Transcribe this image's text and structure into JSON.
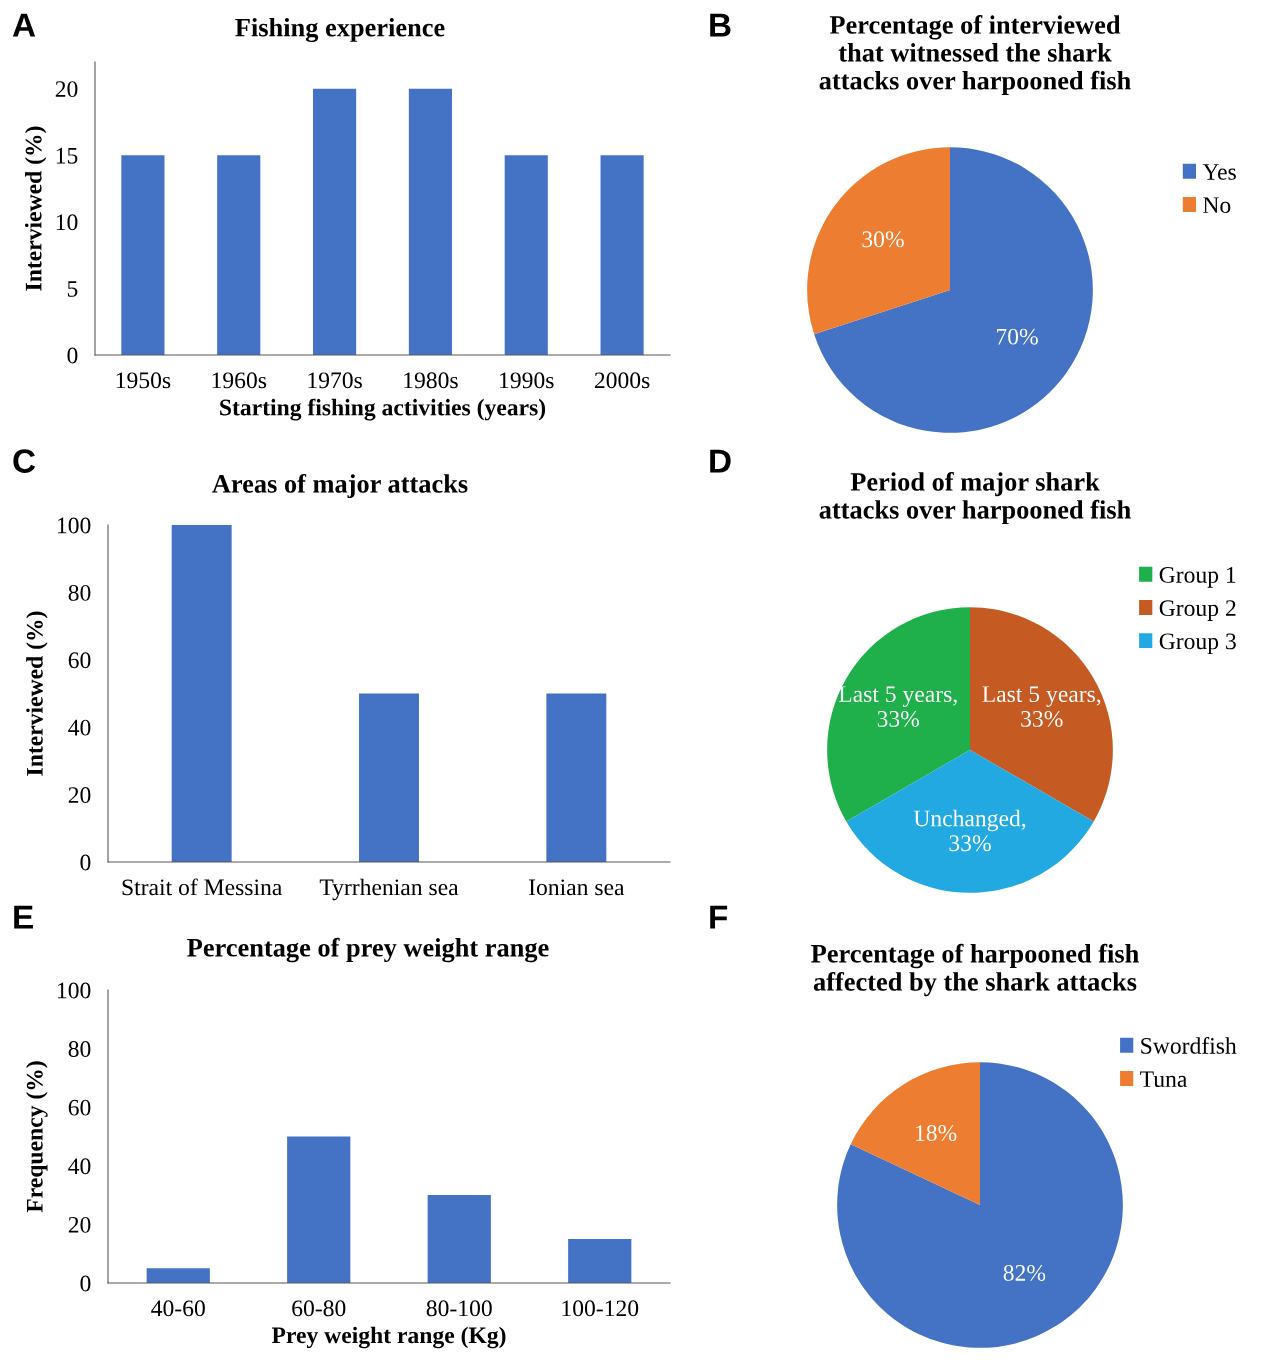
{
  "chart_data": [
    {
      "type": "bar",
      "title": "Fishing experience",
      "xlabel": "Starting fishing activities (years)",
      "ylabel": "Interviewed (%)",
      "annotations": [
        "A"
      ],
      "categories": [
        "1950s",
        "1960s",
        "1970s",
        "1980s",
        "1990s",
        "2000s"
      ],
      "values": [
        15,
        15,
        20,
        20,
        15,
        15
      ],
      "color": "#4472c4",
      "ylim": [
        0,
        22
      ],
      "yticks": [
        0,
        5,
        10,
        15,
        20
      ]
    },
    {
      "type": "pie",
      "title": "Percentage of interviewed\nthat witnessed the shark\nattacks over harpooned fish",
      "annotations": [
        "B"
      ],
      "categories": [
        "Yes",
        "No"
      ],
      "values": [
        70,
        30
      ],
      "colors": [
        "#4472c4",
        "#ed7d31"
      ],
      "value_labels": [
        "70%",
        "30%"
      ],
      "legend": "top right"
    },
    {
      "type": "bar",
      "title": "Areas of major attacks",
      "ylabel": "Interviewed (%)",
      "annotations": [
        "C"
      ],
      "categories": [
        "Strait of Messina",
        "Tyrrhenian sea",
        "Ionian sea"
      ],
      "values": [
        100,
        50,
        50
      ],
      "color": "#4472c4",
      "ylim": [
        0,
        100
      ],
      "yticks": [
        0,
        20,
        40,
        60,
        80,
        100
      ]
    },
    {
      "type": "pie",
      "title": "Period of major shark\nattacks over harpooned fish",
      "annotations": [
        "D"
      ],
      "categories": [
        "Group 1",
        "Group 2",
        "Group 3"
      ],
      "values": [
        33,
        33,
        33
      ],
      "colors": [
        "#1fb04b",
        "#c55a22",
        "#23a9e1"
      ],
      "value_labels": [
        "Last 5 years,\n33%",
        "Last 5 years,\n33%",
        "Unchanged,\n33%"
      ],
      "legend": "top right"
    },
    {
      "type": "bar",
      "title": "Percentage of prey weight range",
      "xlabel": "Prey weight range (Kg)",
      "ylabel": "Frequency (%)",
      "annotations": [
        "E"
      ],
      "categories": [
        "40-60",
        "60-80",
        "80-100",
        "100-120"
      ],
      "values": [
        5,
        50,
        30,
        15
      ],
      "color": "#4472c4",
      "ylim": [
        0,
        100
      ],
      "yticks": [
        0,
        20,
        40,
        60,
        80,
        100
      ]
    },
    {
      "type": "pie",
      "title": "Percentage of harpooned fish\naffected by the shark attacks",
      "annotations": [
        "F"
      ],
      "categories": [
        "Swordfish",
        "Tuna"
      ],
      "values": [
        82,
        18
      ],
      "colors": [
        "#4472c4",
        "#ed7d31"
      ],
      "value_labels": [
        "82%",
        "18%"
      ],
      "legend": "top right"
    }
  ]
}
